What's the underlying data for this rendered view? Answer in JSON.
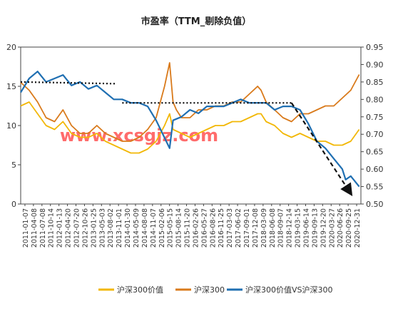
{
  "chart_data": {
    "type": "line",
    "title": "市盈率（TTM_剔除负值）",
    "watermark": "www.xcsgjz.com",
    "colors": {
      "value300": "#F2B705",
      "hs300": "#D97A1B",
      "ratio": "#1F6FB2",
      "dotted": "#111111",
      "axis": "#444444",
      "watermark": "#FF3B3B"
    },
    "y_left": {
      "ylim": [
        0,
        20
      ],
      "ticks": [
        "0",
        "5",
        "10",
        "15",
        "20"
      ]
    },
    "y_right": {
      "ylim": [
        0.5,
        0.95
      ],
      "ticks": [
        "0.50",
        "0.55",
        "0.60",
        "0.65",
        "0.70",
        "0.75",
        "0.80",
        "0.85",
        "0.90",
        "0.95"
      ]
    },
    "x_tick_labels": [
      "2011-01-07",
      "2011-04-08",
      "2011-07-08",
      "2011-10-14",
      "2012-01-13",
      "2012-04-20",
      "2012-07-20",
      "2012-10-26",
      "2013-01-25",
      "2013-05-03",
      "2013-08-02",
      "2013-11-01",
      "2014-01-30",
      "2014-05-09",
      "2014-08-08",
      "2014-11-07",
      "2015-02-06",
      "2015-05-15",
      "2015-08-14",
      "2015-11-20",
      "2016-02-26",
      "2016-05-27",
      "2016-08-26",
      "2016-11-25",
      "2017-03-03",
      "2017-06-02",
      "2017-09-01",
      "2017-12-08",
      "2018-03-09",
      "2018-06-08",
      "2018-09-07",
      "2018-12-14",
      "2019-03-15",
      "2019-06-14",
      "2019-09-13",
      "2019-12-20",
      "2020-03-27",
      "2020-06-26",
      "2020-09-25",
      "2020-12-31"
    ],
    "series": [
      {
        "name": "沪深300价值",
        "axis": "left",
        "x": [
          2011.0,
          2011.25,
          2011.5,
          2011.75,
          2012.0,
          2012.25,
          2012.5,
          2012.75,
          2013.0,
          2013.25,
          2013.5,
          2013.75,
          2014.0,
          2014.25,
          2014.5,
          2014.75,
          2015.0,
          2015.25,
          2015.4,
          2015.5,
          2015.75,
          2016.0,
          2016.25,
          2016.5,
          2016.75,
          2017.0,
          2017.25,
          2017.5,
          2017.75,
          2018.0,
          2018.1,
          2018.25,
          2018.5,
          2018.75,
          2019.0,
          2019.25,
          2019.5,
          2019.75,
          2020.0,
          2020.25,
          2020.5,
          2020.75,
          2021.0
        ],
        "values": [
          12.5,
          13.0,
          11.5,
          10.0,
          9.5,
          10.5,
          9.0,
          8.5,
          8.5,
          9.0,
          8.0,
          7.5,
          7.0,
          6.5,
          6.5,
          7.0,
          8.0,
          10.0,
          11.5,
          9.5,
          9.0,
          8.5,
          9.0,
          9.5,
          10.0,
          10.0,
          10.5,
          10.5,
          11.0,
          11.5,
          11.5,
          10.5,
          10.0,
          9.0,
          8.5,
          9.0,
          8.5,
          8.0,
          8.0,
          7.5,
          7.5,
          8.0,
          9.5
        ]
      },
      {
        "name": "沪深300",
        "axis": "left",
        "x": [
          2011.0,
          2011.25,
          2011.5,
          2011.75,
          2012.0,
          2012.25,
          2012.5,
          2012.75,
          2013.0,
          2013.25,
          2013.5,
          2013.75,
          2014.0,
          2014.25,
          2014.5,
          2014.75,
          2015.0,
          2015.25,
          2015.4,
          2015.5,
          2015.6,
          2015.75,
          2016.0,
          2016.25,
          2016.5,
          2016.75,
          2017.0,
          2017.25,
          2017.5,
          2017.75,
          2018.0,
          2018.1,
          2018.25,
          2018.5,
          2018.75,
          2019.0,
          2019.25,
          2019.5,
          2019.75,
          2020.0,
          2020.25,
          2020.5,
          2020.75,
          2021.0
        ],
        "values": [
          15.5,
          14.5,
          13.0,
          11.0,
          10.5,
          12.0,
          10.0,
          9.0,
          9.0,
          10.0,
          9.0,
          8.5,
          8.0,
          8.0,
          8.5,
          9.5,
          11.0,
          15.0,
          18.0,
          13.0,
          12.0,
          11.0,
          11.0,
          12.0,
          12.0,
          12.5,
          12.5,
          13.0,
          13.0,
          14.0,
          15.0,
          14.5,
          13.0,
          12.0,
          11.0,
          10.5,
          11.5,
          11.5,
          12.0,
          12.5,
          12.5,
          13.5,
          14.5,
          16.5
        ]
      },
      {
        "name": "沪深300价值VS沪深300",
        "axis": "right",
        "x": [
          2011.0,
          2011.25,
          2011.5,
          2011.75,
          2012.0,
          2012.25,
          2012.5,
          2012.75,
          2013.0,
          2013.25,
          2013.5,
          2013.75,
          2014.0,
          2014.25,
          2014.5,
          2014.75,
          2015.0,
          2015.25,
          2015.4,
          2015.5,
          2015.75,
          2016.0,
          2016.25,
          2016.5,
          2016.75,
          2017.0,
          2017.25,
          2017.5,
          2017.75,
          2018.0,
          2018.25,
          2018.5,
          2018.75,
          2019.0,
          2019.25,
          2019.5,
          2019.75,
          2020.0,
          2020.25,
          2020.5,
          2020.6,
          2020.75,
          2021.0
        ],
        "values": [
          0.82,
          0.86,
          0.88,
          0.85,
          0.86,
          0.87,
          0.84,
          0.85,
          0.83,
          0.84,
          0.82,
          0.8,
          0.8,
          0.79,
          0.79,
          0.78,
          0.74,
          0.69,
          0.66,
          0.74,
          0.75,
          0.77,
          0.76,
          0.78,
          0.78,
          0.78,
          0.79,
          0.8,
          0.79,
          0.79,
          0.79,
          0.77,
          0.78,
          0.78,
          0.77,
          0.73,
          0.68,
          0.66,
          0.63,
          0.6,
          0.57,
          0.58,
          0.55
        ]
      }
    ],
    "annotations": [
      {
        "type": "dotted-line",
        "axis": "right",
        "from": [
          2011.0,
          0.85
        ],
        "to": [
          2013.8,
          0.845
        ]
      },
      {
        "type": "dotted-line",
        "axis": "right",
        "from": [
          2014.0,
          0.79
        ],
        "to": [
          2019.0,
          0.79
        ]
      },
      {
        "type": "dashed-arrow",
        "axis": "right",
        "from": [
          2019.0,
          0.79
        ],
        "to": [
          2020.75,
          0.53
        ]
      }
    ],
    "legend_position": "bottom",
    "x_range": [
      2011.0,
      2021.05
    ]
  }
}
